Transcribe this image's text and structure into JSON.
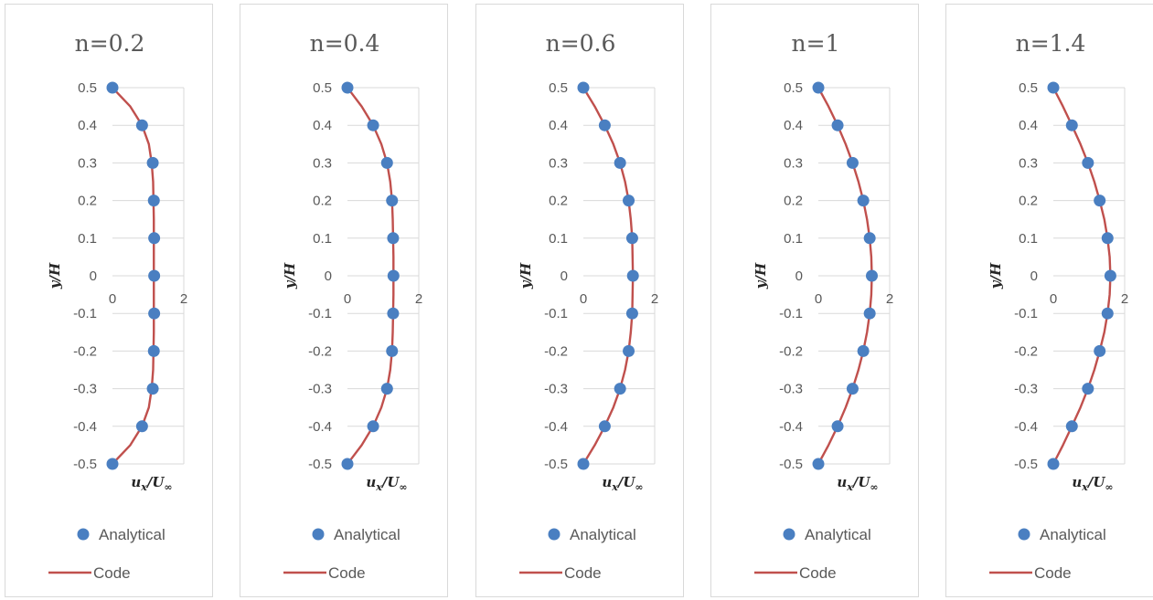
{
  "colors": {
    "analytical": "#4a7fc1",
    "code": "#c0504d",
    "grid": "#d9d9d9",
    "text": "#595959"
  },
  "legend": {
    "analytical_label": "Analytical",
    "code_label": "Code"
  },
  "axes": {
    "xlabel": "ux/U∞",
    "xlabel_main": "u",
    "xlabel_sub": "x",
    "xlabel_tail": "/U",
    "xlabel_inf": "∞",
    "ylabel": "y/H",
    "y_ticks": [
      "0.5",
      "0.4",
      "0.3",
      "0.2",
      "0.1",
      "0",
      "-0.1",
      "-0.2",
      "-0.3",
      "-0.4",
      "-0.5"
    ],
    "x_ticks": [
      "0",
      "2"
    ]
  },
  "chart_data": [
    {
      "type": "line",
      "title": "n=0.2",
      "xlabel": "ux/U∞",
      "ylabel": "y/H",
      "xlim": [
        0,
        2
      ],
      "ylim": [
        -0.5,
        0.5
      ],
      "grid": true,
      "legend_position": "bottom",
      "series": [
        {
          "name": "Analytical",
          "kind": "scatter",
          "y": [
            0.5,
            0.4,
            0.3,
            0.2,
            0.1,
            0,
            -0.1,
            -0.2,
            -0.3,
            -0.4,
            -0.5
          ],
          "x": [
            0.0,
            0.83,
            1.13,
            1.16,
            1.17,
            1.17,
            1.17,
            1.16,
            1.13,
            0.83,
            0.0
          ]
        },
        {
          "name": "Code",
          "kind": "line",
          "y": [
            0.5,
            0.45,
            0.4,
            0.35,
            0.3,
            0.25,
            0.2,
            0.15,
            0.1,
            0.05,
            0,
            -0.05,
            -0.1,
            -0.15,
            -0.2,
            -0.25,
            -0.3,
            -0.35,
            -0.4,
            -0.45,
            -0.5
          ],
          "x": [
            0.0,
            0.5,
            0.83,
            1.02,
            1.1,
            1.14,
            1.15,
            1.16,
            1.16,
            1.16,
            1.16,
            1.16,
            1.16,
            1.16,
            1.15,
            1.14,
            1.1,
            1.02,
            0.83,
            0.5,
            0.0
          ]
        }
      ]
    },
    {
      "type": "line",
      "title": "n=0.4",
      "xlabel": "ux/U∞",
      "ylabel": "y/H",
      "xlim": [
        0,
        2
      ],
      "ylim": [
        -0.5,
        0.5
      ],
      "grid": true,
      "legend_position": "bottom",
      "series": [
        {
          "name": "Analytical",
          "kind": "scatter",
          "y": [
            0.5,
            0.4,
            0.3,
            0.2,
            0.1,
            0,
            -0.1,
            -0.2,
            -0.3,
            -0.4,
            -0.5
          ],
          "x": [
            0.0,
            0.72,
            1.11,
            1.25,
            1.28,
            1.29,
            1.28,
            1.25,
            1.11,
            0.72,
            0.0
          ]
        },
        {
          "name": "Code",
          "kind": "line",
          "y": [
            0.5,
            0.45,
            0.4,
            0.35,
            0.3,
            0.25,
            0.2,
            0.15,
            0.1,
            0.05,
            0,
            -0.05,
            -0.1,
            -0.15,
            -0.2,
            -0.25,
            -0.3,
            -0.35,
            -0.4,
            -0.45,
            -0.5
          ],
          "x": [
            0.0,
            0.4,
            0.72,
            0.95,
            1.11,
            1.2,
            1.25,
            1.27,
            1.28,
            1.29,
            1.29,
            1.29,
            1.28,
            1.27,
            1.25,
            1.2,
            1.11,
            0.95,
            0.72,
            0.4,
            0.0
          ]
        }
      ]
    },
    {
      "type": "line",
      "title": "n=0.6",
      "xlabel": "ux/U∞",
      "ylabel": "y/H",
      "xlim": [
        0,
        2
      ],
      "ylim": [
        -0.5,
        0.5
      ],
      "grid": true,
      "legend_position": "bottom",
      "series": [
        {
          "name": "Analytical",
          "kind": "scatter",
          "y": [
            0.5,
            0.4,
            0.3,
            0.2,
            0.1,
            0,
            -0.1,
            -0.2,
            -0.3,
            -0.4,
            -0.5
          ],
          "x": [
            0.0,
            0.6,
            1.03,
            1.27,
            1.37,
            1.39,
            1.37,
            1.27,
            1.03,
            0.6,
            0.0
          ]
        },
        {
          "name": "Code",
          "kind": "line",
          "y": [
            0.5,
            0.45,
            0.4,
            0.35,
            0.3,
            0.25,
            0.2,
            0.15,
            0.1,
            0.05,
            0,
            -0.05,
            -0.1,
            -0.15,
            -0.2,
            -0.25,
            -0.3,
            -0.35,
            -0.4,
            -0.45,
            -0.5
          ],
          "x": [
            0.0,
            0.32,
            0.6,
            0.84,
            1.03,
            1.17,
            1.27,
            1.33,
            1.37,
            1.38,
            1.39,
            1.38,
            1.37,
            1.33,
            1.27,
            1.17,
            1.03,
            0.84,
            0.6,
            0.32,
            0.0
          ]
        }
      ]
    },
    {
      "type": "line",
      "title": "n=1",
      "xlabel": "ux/U∞",
      "ylabel": "y/H",
      "xlim": [
        0,
        2
      ],
      "ylim": [
        -0.5,
        0.5
      ],
      "grid": true,
      "legend_position": "bottom",
      "series": [
        {
          "name": "Analytical",
          "kind": "scatter",
          "y": [
            0.5,
            0.4,
            0.3,
            0.2,
            0.1,
            0,
            -0.1,
            -0.2,
            -0.3,
            -0.4,
            -0.5
          ],
          "x": [
            0.0,
            0.54,
            0.96,
            1.26,
            1.44,
            1.5,
            1.44,
            1.26,
            0.96,
            0.54,
            0.0
          ]
        },
        {
          "name": "Code",
          "kind": "line",
          "y": [
            0.5,
            0.45,
            0.4,
            0.35,
            0.3,
            0.25,
            0.2,
            0.15,
            0.1,
            0.05,
            0,
            -0.05,
            -0.1,
            -0.15,
            -0.2,
            -0.25,
            -0.3,
            -0.35,
            -0.4,
            -0.45,
            -0.5
          ],
          "x": [
            0.0,
            0.285,
            0.54,
            0.765,
            0.96,
            1.125,
            1.26,
            1.365,
            1.44,
            1.485,
            1.5,
            1.485,
            1.44,
            1.365,
            1.26,
            1.125,
            0.96,
            0.765,
            0.54,
            0.285,
            0.0
          ]
        }
      ]
    },
    {
      "type": "line",
      "title": "n=1.4",
      "xlabel": "ux/U∞",
      "ylabel": "y/H",
      "xlim": [
        0,
        2
      ],
      "ylim": [
        -0.5,
        0.5
      ],
      "grid": true,
      "legend_position": "bottom",
      "series": [
        {
          "name": "Analytical",
          "kind": "scatter",
          "y": [
            0.5,
            0.4,
            0.3,
            0.2,
            0.1,
            0,
            -0.1,
            -0.2,
            -0.3,
            -0.4,
            -0.5
          ],
          "x": [
            0.0,
            0.52,
            0.97,
            1.3,
            1.52,
            1.6,
            1.52,
            1.3,
            0.97,
            0.52,
            0.0
          ]
        },
        {
          "name": "Code",
          "kind": "line",
          "y": [
            0.5,
            0.45,
            0.4,
            0.35,
            0.3,
            0.25,
            0.2,
            0.15,
            0.1,
            0.05,
            0,
            -0.05,
            -0.1,
            -0.15,
            -0.2,
            -0.25,
            -0.3,
            -0.35,
            -0.4,
            -0.45,
            -0.5
          ],
          "x": [
            0.0,
            0.27,
            0.52,
            0.76,
            0.97,
            1.15,
            1.3,
            1.43,
            1.52,
            1.58,
            1.6,
            1.58,
            1.52,
            1.43,
            1.3,
            1.15,
            0.97,
            0.76,
            0.52,
            0.27,
            0.0
          ]
        }
      ]
    }
  ]
}
